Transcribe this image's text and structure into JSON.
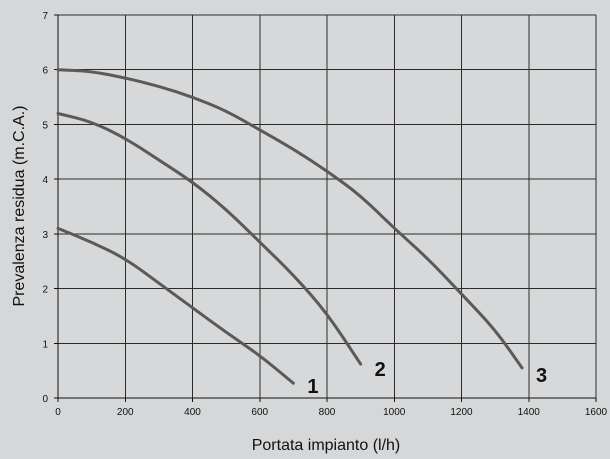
{
  "chart_data": {
    "type": "line",
    "title": "",
    "xlabel": "Portata impianto (l/h)",
    "ylabel": "Prevalenza residua (m.C.A.)",
    "xlim": [
      0,
      1600
    ],
    "ylim": [
      0,
      7
    ],
    "x_ticks": [
      "0",
      "200",
      "400",
      "600",
      "800",
      "1000",
      "1200",
      "1400",
      "1600"
    ],
    "y_ticks": [
      "0",
      "1",
      "2",
      "3",
      "4",
      "5",
      "6",
      "7"
    ],
    "grid": true,
    "series": [
      {
        "name": "1",
        "color": "#5a5a5a",
        "points": [
          {
            "x": 0,
            "y": 3.1
          },
          {
            "x": 100,
            "y": 2.85
          },
          {
            "x": 200,
            "y": 2.55
          },
          {
            "x": 300,
            "y": 2.1
          },
          {
            "x": 400,
            "y": 1.65
          },
          {
            "x": 500,
            "y": 1.2
          },
          {
            "x": 600,
            "y": 0.78
          },
          {
            "x": 700,
            "y": 0.27
          }
        ]
      },
      {
        "name": "2",
        "color": "#5a5a5a",
        "points": [
          {
            "x": 0,
            "y": 5.2
          },
          {
            "x": 100,
            "y": 5.05
          },
          {
            "x": 200,
            "y": 4.75
          },
          {
            "x": 300,
            "y": 4.35
          },
          {
            "x": 400,
            "y": 3.95
          },
          {
            "x": 500,
            "y": 3.45
          },
          {
            "x": 600,
            "y": 2.85
          },
          {
            "x": 700,
            "y": 2.25
          },
          {
            "x": 800,
            "y": 1.55
          },
          {
            "x": 900,
            "y": 0.62
          }
        ]
      },
      {
        "name": "3",
        "color": "#5a5a5a",
        "points": [
          {
            "x": 0,
            "y": 6.0
          },
          {
            "x": 100,
            "y": 5.97
          },
          {
            "x": 200,
            "y": 5.85
          },
          {
            "x": 300,
            "y": 5.7
          },
          {
            "x": 400,
            "y": 5.5
          },
          {
            "x": 500,
            "y": 5.25
          },
          {
            "x": 600,
            "y": 4.9
          },
          {
            "x": 700,
            "y": 4.55
          },
          {
            "x": 800,
            "y": 4.15
          },
          {
            "x": 900,
            "y": 3.7
          },
          {
            "x": 1000,
            "y": 3.1
          },
          {
            "x": 1100,
            "y": 2.55
          },
          {
            "x": 1200,
            "y": 1.9
          },
          {
            "x": 1300,
            "y": 1.25
          },
          {
            "x": 1380,
            "y": 0.55
          }
        ]
      }
    ]
  }
}
